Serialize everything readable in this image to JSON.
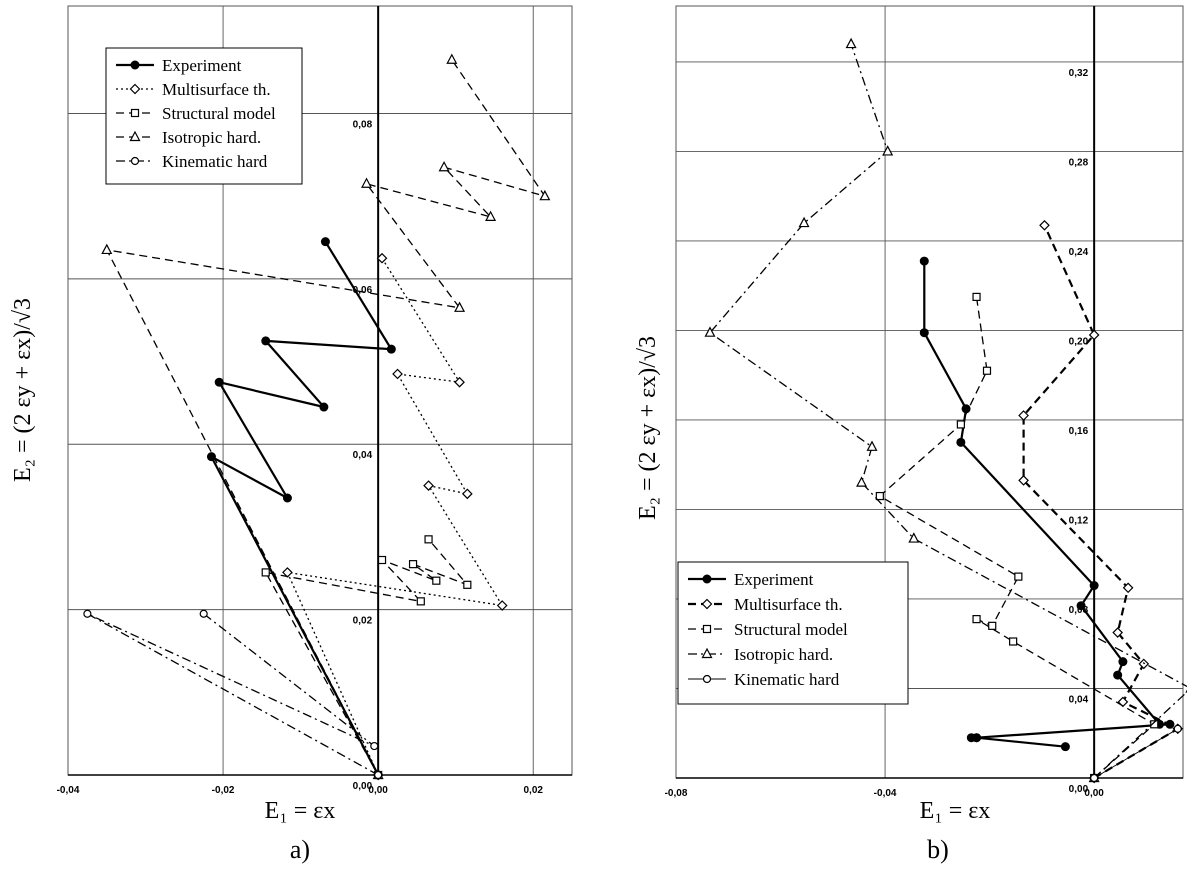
{
  "figure": {
    "captions": [
      "a)",
      "b)"
    ]
  },
  "chart_data": [
    {
      "type": "line",
      "panel_label": "a)",
      "xlabel": "E₁ = εx",
      "ylabel": "E₂ = (2 εy + εx)/√3",
      "xlim": [
        -0.04,
        0.025
      ],
      "ylim": [
        0,
        0.093
      ],
      "xticks": [
        -0.04,
        -0.02,
        0.0,
        0.02
      ],
      "xtick_labels": [
        "-0,04",
        "-0,02",
        "0,00",
        "0,02"
      ],
      "yticks": [
        0.0,
        0.02,
        0.04,
        0.06,
        0.08
      ],
      "ytick_labels": [
        "0,00",
        "0,02",
        "0,04",
        "0,06",
        "0,08"
      ],
      "grid": true,
      "legend_position": "top-left",
      "series": [
        {
          "name": "Experiment",
          "color": "#000000",
          "style": "solid",
          "width": 2.2,
          "marker": "dot",
          "x": [
            0.0,
            -0.0215,
            -0.0117,
            -0.0205,
            -0.007,
            -0.0145,
            0.0017,
            -0.0068
          ],
          "y": [
            0.0,
            0.0385,
            0.0335,
            0.0475,
            0.0445,
            0.0525,
            0.0515,
            0.0645
          ]
        },
        {
          "name": "Multisurface th.",
          "color": "#000000",
          "style": "dotted",
          "width": 1.3,
          "marker": "diamond",
          "x": [
            0.0,
            -0.0117,
            0.016,
            0.0065,
            0.0115,
            0.0025,
            0.0105,
            0.0005
          ],
          "y": [
            0.0,
            0.0245,
            0.0205,
            0.035,
            0.034,
            0.0485,
            0.0475,
            0.0625
          ]
        },
        {
          "name": "Structural model",
          "color": "#000000",
          "style": "dashed",
          "width": 1.3,
          "marker": "square",
          "x": [
            0.0,
            -0.0145,
            0.0055,
            0.0005,
            0.0075,
            0.0045,
            0.0115,
            0.0065
          ],
          "y": [
            0.0,
            0.0245,
            0.021,
            0.026,
            0.0235,
            0.0255,
            0.023,
            0.0285
          ]
        },
        {
          "name": "Isotropic hard.",
          "color": "#000000",
          "style": "dashed",
          "width": 1.3,
          "marker": "triangle",
          "x": [
            0.0,
            -0.035,
            0.0105,
            -0.0015,
            0.0145,
            0.0085,
            0.0215,
            0.0095
          ],
          "y": [
            0.0,
            0.0635,
            0.0565,
            0.0715,
            0.0675,
            0.0735,
            0.07,
            0.0865
          ]
        },
        {
          "name": "Kinematic hard",
          "color": "#000000",
          "style": "dashdot",
          "width": 1.3,
          "marker": "circle",
          "x": [
            0.0,
            -0.0375,
            -0.0005,
            -0.0225
          ],
          "y": [
            0.0,
            0.0195,
            0.0035,
            0.0195
          ]
        }
      ]
    },
    {
      "type": "line",
      "panel_label": "b)",
      "xlabel": "E₁ = εx",
      "ylabel": "E₂ = (2 εy + εx)/√3",
      "xlim": [
        -0.08,
        0.017
      ],
      "ylim": [
        0,
        0.345
      ],
      "xticks": [
        -0.08,
        -0.04,
        0.0
      ],
      "xtick_labels": [
        "-0,08",
        "-0,04",
        "0,00"
      ],
      "yticks": [
        0.0,
        0.04,
        0.08,
        0.12,
        0.16,
        0.2,
        0.24,
        0.28,
        0.32
      ],
      "ytick_labels": [
        "0,00",
        "0,04",
        "0,08",
        "0,12",
        "0,16",
        "0,20",
        "0,24",
        "0,28",
        "0,32"
      ],
      "grid": true,
      "legend_position": "bottom-left",
      "series": [
        {
          "name": "Experiment",
          "color": "#000000",
          "style": "solid",
          "width": 2.2,
          "marker": "dot",
          "x": [
            -0.0055,
            -0.0225,
            -0.0235,
            -0.0225,
            0.0145,
            0.0125,
            0.0045,
            0.0055,
            -0.0025,
            0.0,
            -0.0255,
            -0.0245,
            -0.0325,
            -0.0325
          ],
          "y": [
            0.014,
            0.018,
            0.018,
            0.018,
            0.024,
            0.024,
            0.046,
            0.052,
            0.077,
            0.086,
            0.15,
            0.165,
            0.199,
            0.231
          ]
        },
        {
          "name": "Multisurface th.",
          "color": "#000000",
          "style": "dashed",
          "width": 2.2,
          "marker": "diamond",
          "x": [
            0.0,
            0.016,
            0.0055,
            0.0095,
            0.0045,
            0.0065,
            -0.0135,
            -0.0135,
            0.0,
            -0.0095
          ],
          "y": [
            0.0,
            0.022,
            0.034,
            0.051,
            0.065,
            0.085,
            0.133,
            0.162,
            0.198,
            0.247
          ]
        },
        {
          "name": "Structural model",
          "color": "#000000",
          "style": "dashed",
          "width": 1.3,
          "marker": "square",
          "x": [
            0.0,
            0.0115,
            -0.0155,
            -0.0225,
            -0.0195,
            -0.0145,
            -0.041,
            -0.0255,
            -0.0205,
            -0.0225
          ],
          "y": [
            0.0,
            0.024,
            0.061,
            0.071,
            0.068,
            0.09,
            0.126,
            0.158,
            0.182,
            0.215
          ]
        },
        {
          "name": "Isotropic hard.",
          "color": "#000000",
          "style": "dashdot",
          "width": 1.3,
          "marker": "triangle",
          "x": [
            0.0,
            0.0185,
            -0.0345,
            -0.0445,
            -0.0425,
            -0.0735,
            -0.0555,
            -0.0395,
            -0.0465
          ],
          "y": [
            0.0,
            0.04,
            0.107,
            0.132,
            0.148,
            0.199,
            0.248,
            0.28,
            0.328
          ]
        },
        {
          "name": "Kinematic hard",
          "color": "#000000",
          "style": "solid",
          "width": 0.9,
          "marker": "circle",
          "x": [
            0.0,
            0.016
          ],
          "y": [
            0.0,
            0.022
          ]
        }
      ]
    }
  ]
}
